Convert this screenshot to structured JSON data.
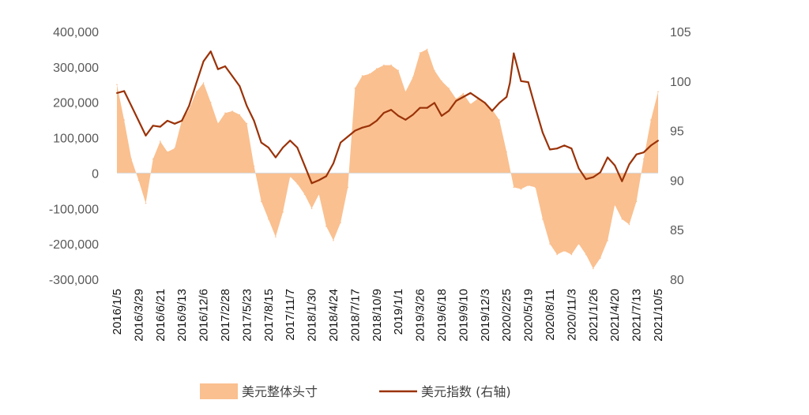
{
  "chart_data": {
    "type": "area+line",
    "title": "",
    "xlabel": "",
    "ylabel_left": "",
    "ylabel_right": "",
    "ylim_left": [
      -300000,
      400000
    ],
    "ylim_right": [
      80,
      105
    ],
    "yticks_left": [
      "400,000",
      "300,000",
      "200,000",
      "100,000",
      "0",
      "-100,000",
      "-200,000",
      "-300,000"
    ],
    "yticks_left_values": [
      400000,
      300000,
      200000,
      100000,
      0,
      -100000,
      -200000,
      -300000
    ],
    "yticks_right": [
      "105",
      "100",
      "95",
      "90",
      "85",
      "80"
    ],
    "yticks_right_values": [
      105,
      100,
      95,
      90,
      85,
      80
    ],
    "x_tick_labels": [
      "2016/1/5",
      "2016/3/29",
      "2016/6/21",
      "2016/9/13",
      "2016/12/6",
      "2017/2/28",
      "2017/5/23",
      "2017/8/15",
      "2017/11/7",
      "2018/1/30",
      "2018/4/24",
      "2018/7/17",
      "2018/10/9",
      "2019/1/1",
      "2019/3/26",
      "2019/6/18",
      "2019/9/10",
      "2019/12/3",
      "2020/2/25",
      "2020/5/19",
      "2020/8/11",
      "2020/11/3",
      "2021/1/26",
      "2021/4/20",
      "2021/7/13",
      "2021/10/5"
    ],
    "grid": false,
    "legend_position": "bottom",
    "series": [
      {
        "name": "美元整体头寸",
        "kind": "area",
        "axis": "left",
        "color": "#FAC090",
        "x": [
          "2016/1/5",
          "2016/2/2",
          "2016/3/1",
          "2016/3/29",
          "2016/4/26",
          "2016/5/24",
          "2016/6/21",
          "2016/7/19",
          "2016/8/16",
          "2016/9/13",
          "2016/10/11",
          "2016/11/8",
          "2016/12/6",
          "2017/1/3",
          "2017/1/31",
          "2017/2/28",
          "2017/3/28",
          "2017/4/25",
          "2017/5/23",
          "2017/6/20",
          "2017/7/18",
          "2017/8/15",
          "2017/9/12",
          "2017/10/10",
          "2017/11/7",
          "2017/12/5",
          "2018/1/2",
          "2018/1/30",
          "2018/2/27",
          "2018/3/27",
          "2018/4/24",
          "2018/5/22",
          "2018/6/19",
          "2018/7/17",
          "2018/8/14",
          "2018/9/11",
          "2018/10/9",
          "2018/11/6",
          "2018/12/4",
          "2019/1/1",
          "2019/1/29",
          "2019/2/26",
          "2019/3/26",
          "2019/4/23",
          "2019/5/21",
          "2019/6/18",
          "2019/7/16",
          "2019/8/13",
          "2019/9/10",
          "2019/10/8",
          "2019/11/5",
          "2019/12/3",
          "2019/12/31",
          "2020/1/28",
          "2020/2/25",
          "2020/3/24",
          "2020/4/21",
          "2020/5/19",
          "2020/6/16",
          "2020/7/14",
          "2020/8/11",
          "2020/9/8",
          "2020/10/6",
          "2020/11/3",
          "2020/12/1",
          "2020/12/29",
          "2021/1/26",
          "2021/2/23",
          "2021/3/23",
          "2021/4/20",
          "2021/5/18",
          "2021/6/15",
          "2021/7/13",
          "2021/8/10",
          "2021/9/7",
          "2021/10/5"
        ],
        "values": [
          250000,
          150000,
          40000,
          -20000,
          -85000,
          40000,
          90000,
          60000,
          70000,
          150000,
          180000,
          230000,
          255000,
          200000,
          140000,
          170000,
          175000,
          165000,
          140000,
          20000,
          -80000,
          -130000,
          -180000,
          -110000,
          -10000,
          -30000,
          -60000,
          -100000,
          -60000,
          -150000,
          -190000,
          -140000,
          -40000,
          240000,
          275000,
          280000,
          295000,
          305000,
          305000,
          290000,
          230000,
          270000,
          340000,
          350000,
          290000,
          260000,
          240000,
          210000,
          225000,
          195000,
          210000,
          200000,
          180000,
          150000,
          60000,
          -40000,
          -45000,
          -35000,
          -40000,
          -130000,
          -200000,
          -230000,
          -220000,
          -230000,
          -200000,
          -230000,
          -270000,
          -240000,
          -190000,
          -90000,
          -130000,
          -145000,
          -80000,
          40000,
          150000,
          230000
        ]
      },
      {
        "name": "美元指数 (右轴)",
        "kind": "line",
        "axis": "right",
        "color": "#9A3208",
        "x": [
          "2016/1/5",
          "2016/2/2",
          "2016/3/1",
          "2016/3/29",
          "2016/4/26",
          "2016/5/24",
          "2016/6/21",
          "2016/7/19",
          "2016/8/16",
          "2016/9/13",
          "2016/10/11",
          "2016/11/8",
          "2016/12/6",
          "2017/1/3",
          "2017/1/31",
          "2017/2/28",
          "2017/3/28",
          "2017/4/25",
          "2017/5/23",
          "2017/6/20",
          "2017/7/18",
          "2017/8/15",
          "2017/9/12",
          "2017/10/10",
          "2017/11/7",
          "2017/12/5",
          "2018/1/2",
          "2018/1/30",
          "2018/2/27",
          "2018/3/27",
          "2018/4/24",
          "2018/5/22",
          "2018/6/19",
          "2018/7/17",
          "2018/8/14",
          "2018/9/11",
          "2018/10/9",
          "2018/11/6",
          "2018/12/4",
          "2019/1/1",
          "2019/1/29",
          "2019/2/26",
          "2019/3/26",
          "2019/4/23",
          "2019/5/21",
          "2019/6/18",
          "2019/7/16",
          "2019/8/13",
          "2019/9/10",
          "2019/10/8",
          "2019/11/5",
          "2019/12/3",
          "2019/12/31",
          "2020/1/28",
          "2020/2/25",
          "2020/3/9",
          "2020/3/24",
          "2020/4/21",
          "2020/5/19",
          "2020/6/16",
          "2020/7/14",
          "2020/8/11",
          "2020/9/8",
          "2020/10/6",
          "2020/11/3",
          "2020/12/1",
          "2020/12/29",
          "2021/1/26",
          "2021/2/23",
          "2021/3/23",
          "2021/4/20",
          "2021/5/18",
          "2021/6/15",
          "2021/7/13",
          "2021/8/10",
          "2021/9/7",
          "2021/10/5"
        ],
        "values": [
          98.8,
          99.0,
          97.5,
          96.0,
          94.5,
          95.5,
          95.4,
          96.0,
          95.7,
          96.0,
          97.5,
          99.8,
          102.0,
          103.0,
          101.2,
          101.5,
          100.5,
          99.5,
          97.5,
          96.0,
          93.8,
          93.3,
          92.3,
          93.3,
          94.0,
          93.3,
          91.5,
          89.7,
          90.0,
          90.4,
          91.7,
          93.8,
          94.4,
          95.0,
          95.3,
          95.5,
          96.0,
          96.8,
          97.1,
          96.5,
          96.1,
          96.6,
          97.3,
          97.3,
          97.8,
          96.5,
          97.0,
          98.0,
          98.4,
          98.8,
          98.3,
          97.8,
          97.0,
          97.8,
          98.4,
          99.8,
          102.8,
          100.0,
          99.9,
          97.3,
          94.8,
          93.1,
          93.2,
          93.5,
          93.2,
          91.2,
          90.1,
          90.3,
          90.8,
          92.3,
          91.5,
          89.9,
          91.6,
          92.6,
          92.8,
          93.5,
          94.0
        ]
      }
    ]
  }
}
